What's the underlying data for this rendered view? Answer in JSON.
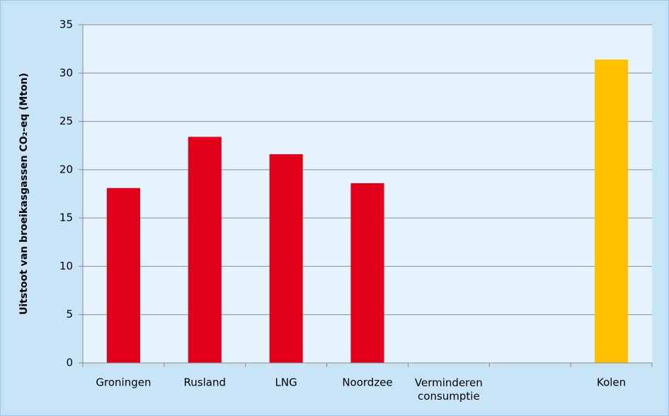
{
  "chart_data": {
    "type": "bar",
    "y_label": "Uitstoot van broeikasgassen CO₂-eq (Mton)",
    "categories": [
      "Groningen",
      "Rusland",
      "LNG",
      "Noordzee",
      "Verminderen\nconsumptie",
      null,
      "Kolen"
    ],
    "values": [
      18.1,
      23.4,
      21.6,
      18.6,
      null,
      null,
      31.4
    ],
    "colors": [
      "#e2001a",
      "#e2001a",
      "#e2001a",
      "#e2001a",
      "#e2001a",
      "#e2001a",
      "#ffc000"
    ],
    "ylim": [
      0,
      35
    ],
    "yticks": [
      0,
      5,
      10,
      15,
      20,
      25,
      30,
      35
    ],
    "grid": true
  }
}
